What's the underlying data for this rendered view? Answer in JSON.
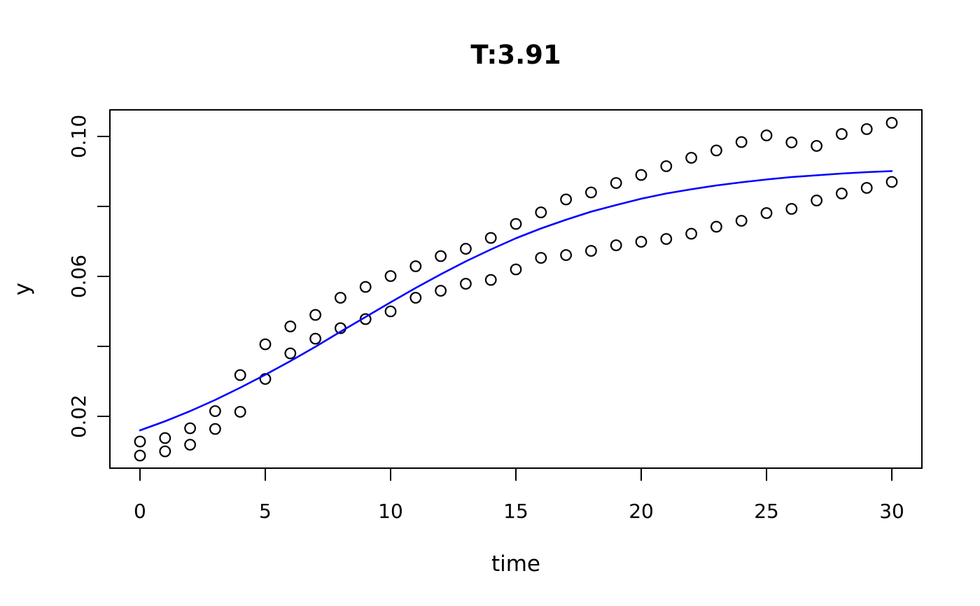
{
  "figure": {
    "title": "T:3.91",
    "xlabel": "time",
    "ylabel": "y"
  },
  "colors": {
    "background": "#ffffff",
    "box": "#000000",
    "points": "#000000",
    "curve": "#0000ff",
    "text": "#000000"
  },
  "chart_data": {
    "type": "scatter",
    "title": "T:3.91",
    "xlabel": "time",
    "ylabel": "y",
    "grid": false,
    "legend": "none",
    "xlim": [
      -1.2,
      31.2
    ],
    "ylim": [
      0.0052,
      0.1076
    ],
    "x_ticks": [
      0,
      5,
      10,
      15,
      20,
      25,
      30
    ],
    "x_tick_labels": [
      "0",
      "5",
      "10",
      "15",
      "20",
      "25",
      "30"
    ],
    "y_ticks": [
      0.02,
      0.04,
      0.06,
      0.08,
      0.1
    ],
    "y_tick_labels": [
      "0.02",
      "",
      "0.06",
      "",
      "0.10"
    ],
    "x": [
      0,
      1,
      2,
      3,
      4,
      5,
      6,
      7,
      8,
      9,
      10,
      11,
      12,
      13,
      14,
      15,
      16,
      17,
      18,
      19,
      20,
      21,
      22,
      23,
      24,
      25,
      26,
      27,
      28,
      29,
      30
    ],
    "series": [
      {
        "name": "upper-band-points",
        "kind": "points",
        "marker": "open-circle",
        "color": "#000000",
        "values": [
          0.0128,
          0.0138,
          0.0166,
          0.0215,
          0.0318,
          0.0406,
          0.0457,
          0.049,
          0.0539,
          0.057,
          0.0601,
          0.0629,
          0.0658,
          0.0679,
          0.071,
          0.075,
          0.0783,
          0.082,
          0.084,
          0.0867,
          0.089,
          0.0915,
          0.0939,
          0.096,
          0.0984,
          0.1003,
          0.0983,
          0.0973,
          0.1007,
          0.1021,
          0.1039
        ]
      },
      {
        "name": "lower-band-points",
        "kind": "points",
        "marker": "open-circle",
        "color": "#000000",
        "values": [
          0.0088,
          0.01,
          0.0119,
          0.0164,
          0.0213,
          0.0307,
          0.038,
          0.0422,
          0.0452,
          0.0478,
          0.05,
          0.0539,
          0.0559,
          0.0579,
          0.059,
          0.062,
          0.0653,
          0.0661,
          0.0673,
          0.0689,
          0.0699,
          0.0707,
          0.0722,
          0.0742,
          0.0759,
          0.0781,
          0.0793,
          0.0817,
          0.0837,
          0.0853,
          0.087
        ]
      },
      {
        "name": "fitted-curve",
        "kind": "line",
        "color": "#0000ff",
        "values": [
          0.016,
          0.0186,
          0.0215,
          0.0247,
          0.0282,
          0.0319,
          0.0358,
          0.0399,
          0.0442,
          0.0484,
          0.0526,
          0.0567,
          0.0606,
          0.0643,
          0.0677,
          0.0709,
          0.0737,
          0.0762,
          0.0785,
          0.0804,
          0.0822,
          0.0837,
          0.0849,
          0.086,
          0.0869,
          0.0877,
          0.0884,
          0.0889,
          0.0894,
          0.0898,
          0.0901
        ]
      }
    ]
  }
}
